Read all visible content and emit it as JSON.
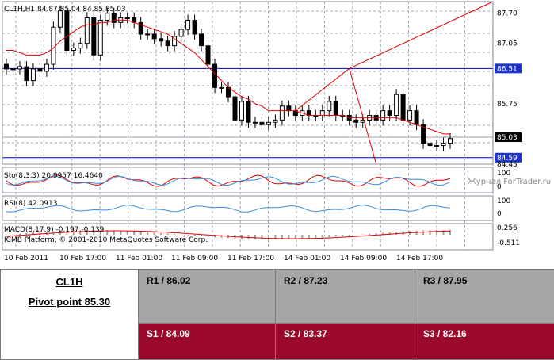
{
  "chart": {
    "header": "CL1H,H1  84.87 85.04 84.85 85.03",
    "price_labels": [
      "87.70",
      "87.05",
      "86.51",
      "85.75",
      "85.03",
      "84.59",
      "84.45"
    ],
    "price_label_highlighted": [
      "86.51",
      "85.03",
      "84.59"
    ],
    "time_labels": [
      "10 Feb 2011",
      "10 Feb 17:00",
      "11 Feb 01:00",
      "11 Feb 09:00",
      "11 Feb 17:00",
      "14 Feb 01:00",
      "14 Feb 09:00",
      "14 Feb 17:00"
    ],
    "stoch_label": "Sto(8,3,3) 20.9957 16.4640",
    "stoch_scale": [
      "100",
      "0"
    ],
    "rsi_label": "RSI(8) 42.0913",
    "rsi_scale": [
      "100",
      "0"
    ],
    "macd_label": "MACD(8,17,9) -0.197 -0.139",
    "macd_scale": [
      "0.256",
      "-0.511"
    ],
    "copyright": "ICMB Platform, © 2001-2010 MetaQuotes Software Corp.",
    "watermark": "Журнал ForTrader.ru",
    "colors": {
      "grid": "#9da3b0",
      "candle": "#000000",
      "ma": "#e00000",
      "trend": "#e00000",
      "level": "#0000c0",
      "level_label_bg": "#1f34c9",
      "rsi": "#3a8fe0",
      "stoch_main": "#e00000",
      "stoch_signal": "#3a8fe0",
      "macd_hist": "#a0a0a0"
    }
  },
  "chart_data": {
    "type": "candlestick",
    "symbol": "CL1H",
    "timeframe": "H1",
    "ohlc_last": [
      84.87,
      85.04,
      84.85,
      85.03
    ],
    "closes": [
      86.5,
      86.5,
      86.55,
      86.25,
      86.5,
      86.45,
      86.6,
      87.4,
      87.75,
      86.9,
      86.95,
      87.05,
      87.6,
      86.8,
      87.55,
      87.7,
      87.5,
      87.6,
      87.6,
      87.5,
      87.25,
      87.25,
      87.15,
      87.1,
      87.0,
      87.2,
      87.35,
      87.55,
      87.25,
      87.0,
      86.6,
      86.1,
      86.1,
      85.9,
      85.4,
      85.8,
      85.35,
      85.35,
      85.3,
      85.35,
      85.4,
      85.7,
      85.6,
      85.5,
      85.6,
      85.5,
      85.5,
      85.6,
      85.8,
      85.5,
      85.5,
      85.4,
      85.35,
      85.4,
      85.5,
      85.4,
      85.6,
      85.5,
      85.95,
      85.4,
      85.6,
      85.3,
      84.9,
      84.85,
      84.85,
      84.9,
      85.0
    ],
    "moving_average": [
      86.9,
      86.9,
      86.85,
      86.8,
      86.8,
      86.8,
      86.85,
      86.95,
      87.1,
      87.2,
      87.3,
      87.4,
      87.45,
      87.45,
      87.5,
      87.5,
      87.55,
      87.55,
      87.55,
      87.5,
      87.45,
      87.4,
      87.35,
      87.3,
      87.25,
      87.15,
      87.05,
      86.95,
      86.85,
      86.7,
      86.55,
      86.4,
      86.25,
      86.1,
      86.0,
      85.9,
      85.85,
      85.75,
      85.7,
      85.6,
      85.6,
      85.6,
      85.6,
      85.6,
      85.55,
      85.5,
      85.5,
      85.5,
      85.5,
      85.5,
      85.5,
      85.45,
      85.45,
      85.45,
      85.45,
      85.45,
      85.45,
      85.45,
      85.45,
      85.4,
      85.35,
      85.3,
      85.25,
      85.2,
      85.15,
      85.1,
      85.1
    ],
    "levels": [
      86.51,
      85.03,
      84.59
    ],
    "rsi_last": 42.0913,
    "stoch_last": [
      20.9957,
      16.464
    ],
    "macd_last": [
      -0.197,
      -0.139
    ],
    "ylim": [
      84.45,
      87.95
    ]
  },
  "pivot": {
    "symbol": "CL1H",
    "pivot_point": "Pivot point 85.30",
    "r1": "R1 / 86.02",
    "r2": "R2  / 87.23",
    "r3": "R3 / 87.95",
    "s1": "S1 / 84.09",
    "s2": "S2 / 83.37",
    "s3": "S3 / 82.16"
  }
}
